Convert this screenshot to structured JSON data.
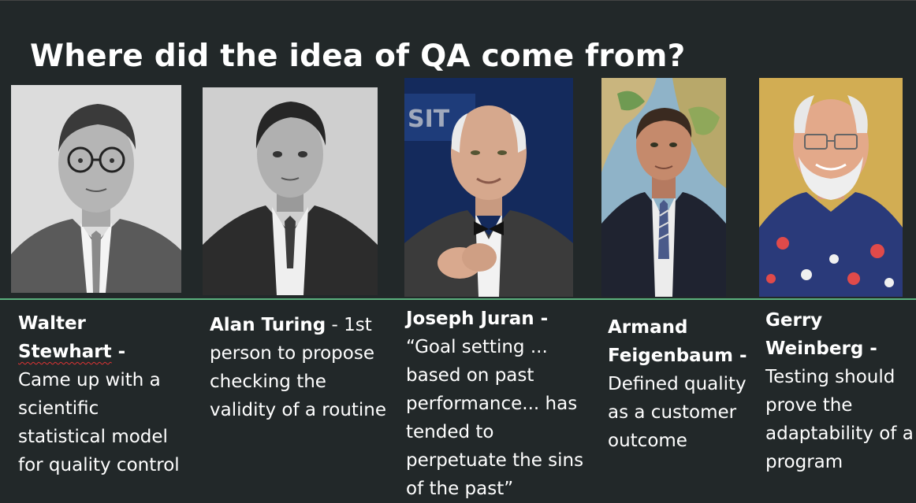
{
  "slide": {
    "title": "Where did the idea of QA come from?"
  },
  "people": [
    {
      "name": "Walter Stewhart",
      "name_part1": "Walter",
      "name_part2": "Stewhart",
      "dash": " -",
      "description": "Came up with a scientific statistical model for quality control"
    },
    {
      "name": "Alan Turing",
      "dash": " -",
      "description": " 1st person to propose checking the validity of a routine"
    },
    {
      "name": "Joseph Juran",
      "dash": " -",
      "description": "“Goal setting ... based on past performance... has tended to perpetuate the sins of the past”"
    },
    {
      "name": "Armand Feigenbaum",
      "name_part1": "Armand",
      "name_part2": "Feigenbaum",
      "dash": " -",
      "description": "Defined quality as a customer outcome"
    },
    {
      "name": "Gerry Weinberg",
      "name_part1": "Gerry",
      "name_part2": "Weinberg",
      "dash": " -",
      "description": "Testing should prove the adaptability of a program"
    }
  ],
  "colors": {
    "background": "#222829",
    "divider": "#5bb17e",
    "text": "#ffffff",
    "spellcheck": "#dd3333"
  }
}
